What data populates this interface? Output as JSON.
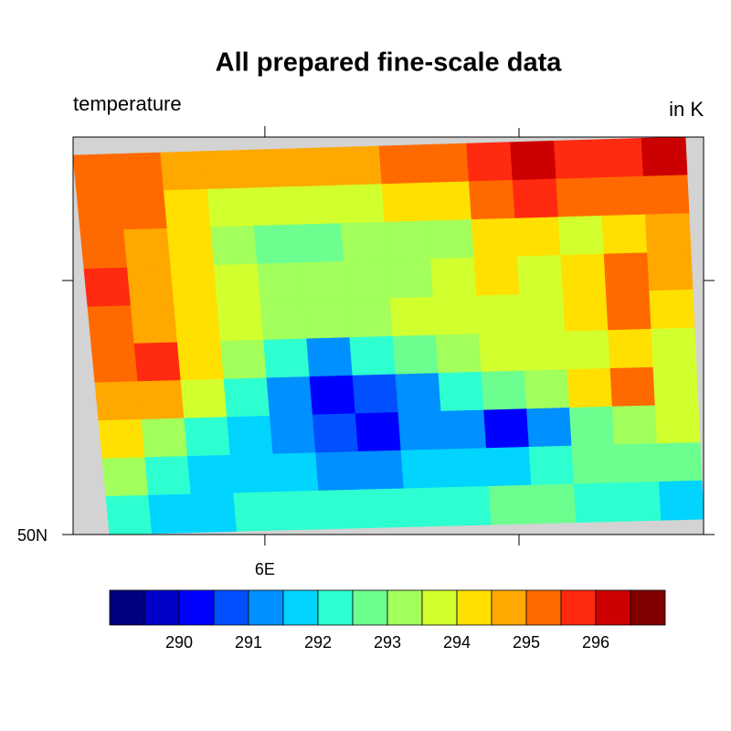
{
  "chart_data": {
    "type": "contour",
    "title": "All prepared fine-scale data",
    "subtitle_left": "temperature",
    "subtitle_right": "in K",
    "xlim": [
      5.245,
      7.727
    ],
    "ylim": [
      50,
      51.0
    ],
    "xticks": [
      {
        "value": 6,
        "label": "6E"
      }
    ],
    "yticks": [
      {
        "value": 50,
        "label": "50N"
      }
    ],
    "missing_color": "#d3d3d3",
    "values": [
      [
        295.2,
        295.2,
        294.9,
        294.7,
        294.8,
        294.7,
        294.7,
        295.2,
        295.2,
        295.7,
        296.2,
        295.8,
        295.7,
        296.2
      ],
      [
        295.2,
        295.2,
        294.3,
        293.8,
        293.8,
        293.7,
        293.9,
        294.2,
        294.3,
        295.2,
        295.5,
        295.2,
        295.2,
        295.2
      ],
      [
        295.2,
        294.9,
        294.2,
        293.2,
        292.8,
        292.8,
        293.2,
        293.2,
        293.3,
        294.2,
        294.4,
        293.9,
        294.3,
        294.7
      ],
      [
        295.8,
        294.7,
        294.2,
        293.7,
        293.2,
        293.2,
        293.3,
        293.2,
        293.7,
        294.0,
        293.7,
        294.2,
        295.2,
        294.7
      ],
      [
        295.2,
        294.7,
        294.3,
        293.7,
        293.3,
        293.2,
        293.4,
        293.5,
        293.7,
        293.6,
        293.5,
        294.2,
        295.2,
        294.4
      ],
      [
        295.2,
        295.6,
        294.2,
        293.2,
        292.2,
        291.2,
        292.2,
        292.7,
        293.2,
        293.5,
        293.6,
        293.7,
        294.2,
        293.7
      ],
      [
        294.7,
        294.7,
        293.6,
        292.2,
        291.1,
        290.3,
        290.8,
        291.3,
        292.2,
        292.7,
        293.2,
        294.2,
        295.2,
        293.7
      ],
      [
        294.2,
        293.2,
        292.2,
        291.8,
        291.0,
        290.6,
        290.2,
        291.2,
        291.0,
        290.3,
        291.2,
        292.8,
        293.2,
        293.7
      ],
      [
        293.2,
        292.2,
        291.6,
        291.7,
        291.7,
        291.2,
        291.2,
        291.7,
        291.7,
        291.5,
        292.2,
        292.7,
        292.7,
        292.8
      ],
      [
        292.2,
        291.9,
        291.8,
        292.2,
        292.2,
        292.3,
        292.2,
        292.2,
        292.2,
        292.7,
        292.6,
        292.3,
        292.2,
        291.9
      ]
    ],
    "levels": [
      289.5,
      290,
      290.5,
      291,
      291.5,
      292,
      292.5,
      293,
      293.5,
      294,
      294.5,
      295,
      295.5,
      296,
      296.5
    ],
    "colorbar_ticks": [
      290,
      291,
      292,
      293,
      294,
      295,
      296
    ],
    "colors": [
      "#00007f",
      "#0000c8",
      "#0000ff",
      "#0050ff",
      "#0090ff",
      "#00d4ff",
      "#2effd0",
      "#6cff90",
      "#a2ff5c",
      "#d2ff2e",
      "#ffe000",
      "#ffa800",
      "#ff6a00",
      "#ff2a10",
      "#cc0000",
      "#800000"
    ]
  }
}
